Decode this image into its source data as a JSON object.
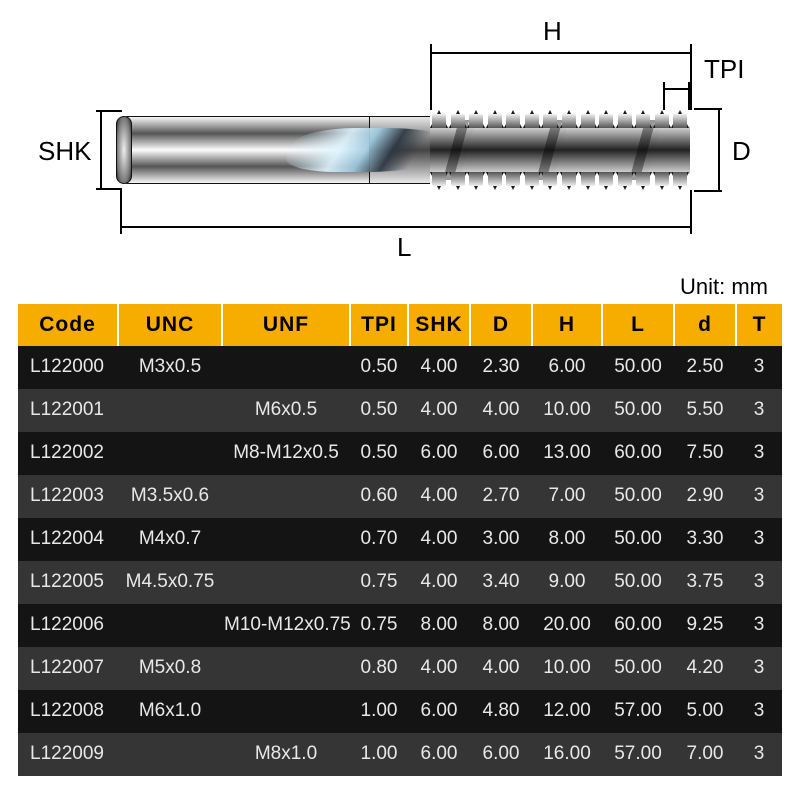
{
  "diagram": {
    "labels": {
      "SHK": "SHK",
      "H": "H",
      "TPI": "TPI",
      "D": "D",
      "L": "L"
    }
  },
  "unit_label": "Unit: mm",
  "table": {
    "header_bg": "#f7ad00",
    "row_bg_odd": "#141414",
    "row_bg_even": "#353535",
    "text_color": "#e8e8e8",
    "columns": [
      "Code",
      "UNC",
      "UNF",
      "TPI",
      "SHK",
      "D",
      "H",
      "L",
      "d",
      "T"
    ],
    "rows": [
      [
        "L122000",
        "M3x0.5",
        "",
        "0.50",
        "4.00",
        "2.30",
        "6.00",
        "50.00",
        "2.50",
        "3"
      ],
      [
        "L122001",
        "",
        "M6x0.5",
        "0.50",
        "4.00",
        "4.00",
        "10.00",
        "50.00",
        "5.50",
        "3"
      ],
      [
        "L122002",
        "",
        "M8-M12x0.5",
        "0.50",
        "6.00",
        "6.00",
        "13.00",
        "60.00",
        "7.50",
        "3"
      ],
      [
        "L122003",
        "M3.5x0.6",
        "",
        "0.60",
        "4.00",
        "2.70",
        "7.00",
        "50.00",
        "2.90",
        "3"
      ],
      [
        "L122004",
        "M4x0.7",
        "",
        "0.70",
        "4.00",
        "3.00",
        "8.00",
        "50.00",
        "3.30",
        "3"
      ],
      [
        "L122005",
        "M4.5x0.75",
        "",
        "0.75",
        "4.00",
        "3.40",
        "9.00",
        "50.00",
        "3.75",
        "3"
      ],
      [
        "L122006",
        "",
        "M10-M12x0.75",
        "0.75",
        "8.00",
        "8.00",
        "20.00",
        "60.00",
        "9.25",
        "3"
      ],
      [
        "L122007",
        "M5x0.8",
        "",
        "0.80",
        "4.00",
        "4.00",
        "10.00",
        "50.00",
        "4.20",
        "3"
      ],
      [
        "L122008",
        "M6x1.0",
        "",
        "1.00",
        "6.00",
        "4.80",
        "12.00",
        "57.00",
        "5.00",
        "3"
      ],
      [
        "L122009",
        "",
        "M8x1.0",
        "1.00",
        "6.00",
        "6.00",
        "16.00",
        "57.00",
        "7.00",
        "3"
      ]
    ]
  }
}
